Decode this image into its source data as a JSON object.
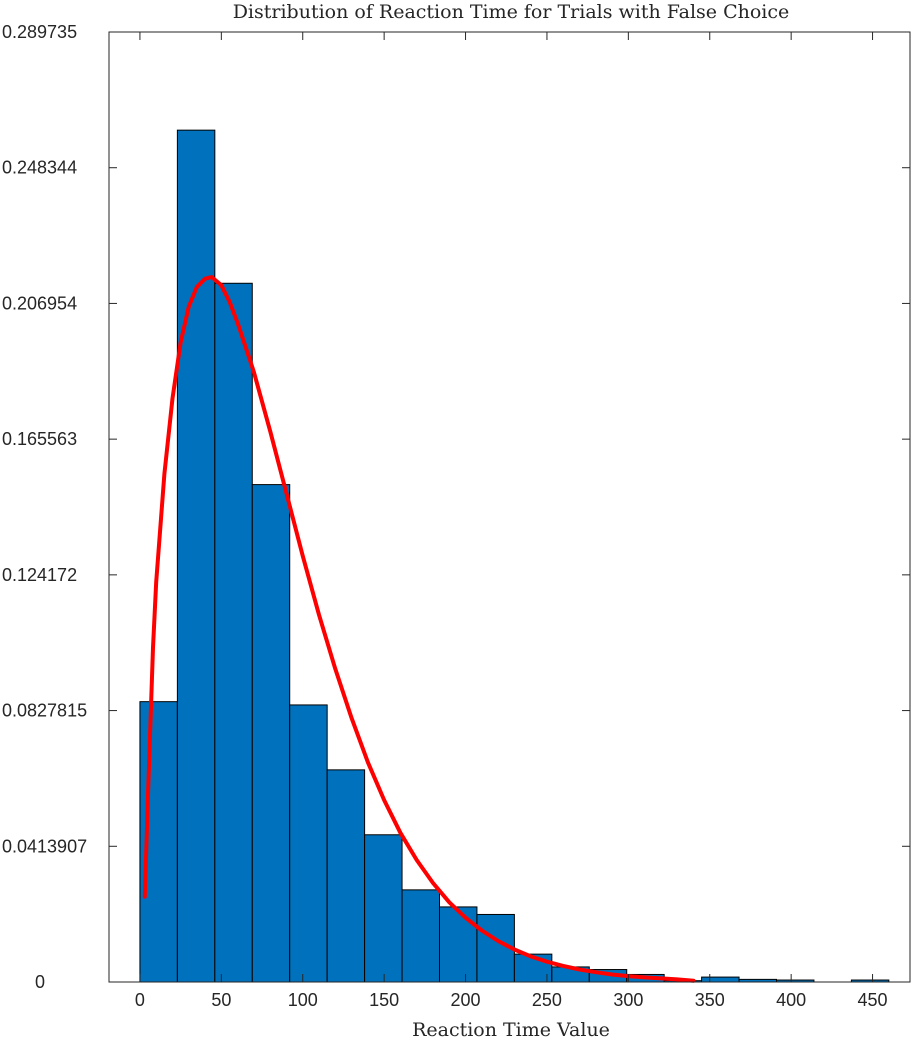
{
  "chart_data": {
    "type": "bar",
    "title": "Distribution of Reaction Time for Trials with False Choice",
    "xlabel": "Reaction Time Value",
    "ylabel": "",
    "xlim": [
      -19,
      473
    ],
    "ylim": [
      0,
      0.289735
    ],
    "xticks": [
      0,
      50,
      100,
      150,
      200,
      250,
      300,
      350,
      400,
      450
    ],
    "xtick_labels": [
      "0",
      "50",
      "100",
      "150",
      "200",
      "250",
      "300",
      "350",
      "400",
      "450"
    ],
    "yticks": [
      0,
      0.0413907,
      0.0827815,
      0.124172,
      0.165563,
      0.206954,
      0.248344,
      0.289735
    ],
    "ytick_labels": [
      "0",
      "0.0413907",
      "0.0827815",
      "0.124172",
      "0.165563",
      "0.206954",
      "0.248344",
      "0.289735"
    ],
    "bin_edges": [
      0,
      23,
      46,
      69,
      92,
      115,
      138,
      161,
      184,
      207,
      230,
      253,
      276,
      299,
      322,
      345,
      368,
      391,
      414,
      437,
      460
    ],
    "values": [
      0.0855,
      0.2598,
      0.2131,
      0.1517,
      0.0845,
      0.0647,
      0.0449,
      0.0281,
      0.0229,
      0.0206,
      0.0085,
      0.0046,
      0.0038,
      0.0023,
      0.0004,
      0.0015,
      0.0008,
      0.0006,
      0.0,
      0.0006
    ],
    "bar_color": "#0072bd",
    "fit_curve": {
      "color": "#ff0000",
      "x": [
        3,
        5,
        8,
        10,
        15,
        20,
        25,
        30,
        35,
        40,
        44,
        50,
        55,
        60,
        70,
        80,
        90,
        100,
        110,
        120,
        130,
        140,
        150,
        160,
        170,
        180,
        190,
        200,
        210,
        220,
        230,
        240,
        250,
        260,
        270,
        280,
        290,
        300,
        310,
        320,
        330,
        340
      ],
      "y": [
        0.026,
        0.058,
        0.102,
        0.122,
        0.155,
        0.178,
        0.195,
        0.206,
        0.212,
        0.2145,
        0.215,
        0.2125,
        0.2075,
        0.201,
        0.186,
        0.168,
        0.149,
        0.13,
        0.112,
        0.0955,
        0.0805,
        0.067,
        0.0555,
        0.0455,
        0.0372,
        0.0302,
        0.0243,
        0.0196,
        0.0157,
        0.0125,
        0.0099,
        0.0078,
        0.0062,
        0.0049,
        0.0038,
        0.003,
        0.0023,
        0.0018,
        0.0014,
        0.0011,
        0.0008,
        0.0004
      ]
    },
    "legend": "none",
    "grid": false
  }
}
